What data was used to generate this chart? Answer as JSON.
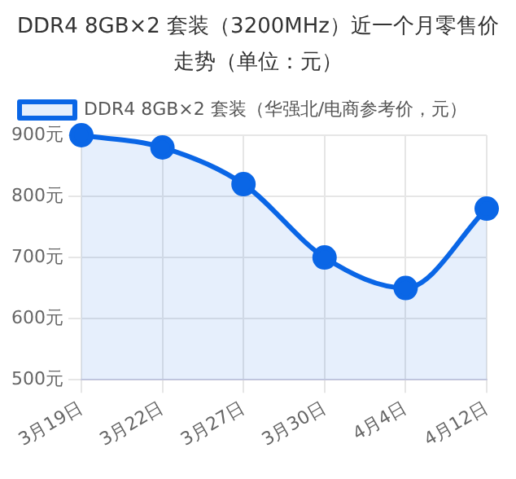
{
  "chart_data": {
    "type": "area",
    "title": "DDR4 8GB×2 套装（3200MHz）近一个月零售价走势（单位：元）",
    "categories": [
      "3月19日",
      "3月22日",
      "3月27日",
      "3月30日",
      "4月4日",
      "4月12日"
    ],
    "series": [
      {
        "name": "DDR4 8GB×2 套装（华强北/电商参考价，元）",
        "color": "#0a66e6",
        "values": [
          900,
          880,
          820,
          700,
          650,
          780
        ]
      }
    ],
    "ylim": [
      500,
      900
    ],
    "yticks": [
      {
        "value": 500,
        "label": "500元"
      },
      {
        "value": 600,
        "label": "600元"
      },
      {
        "value": 700,
        "label": "700元"
      },
      {
        "value": 800,
        "label": "800元"
      },
      {
        "value": 900,
        "label": "900元"
      }
    ],
    "grid": true,
    "legend": "top left",
    "marker": "circle"
  }
}
